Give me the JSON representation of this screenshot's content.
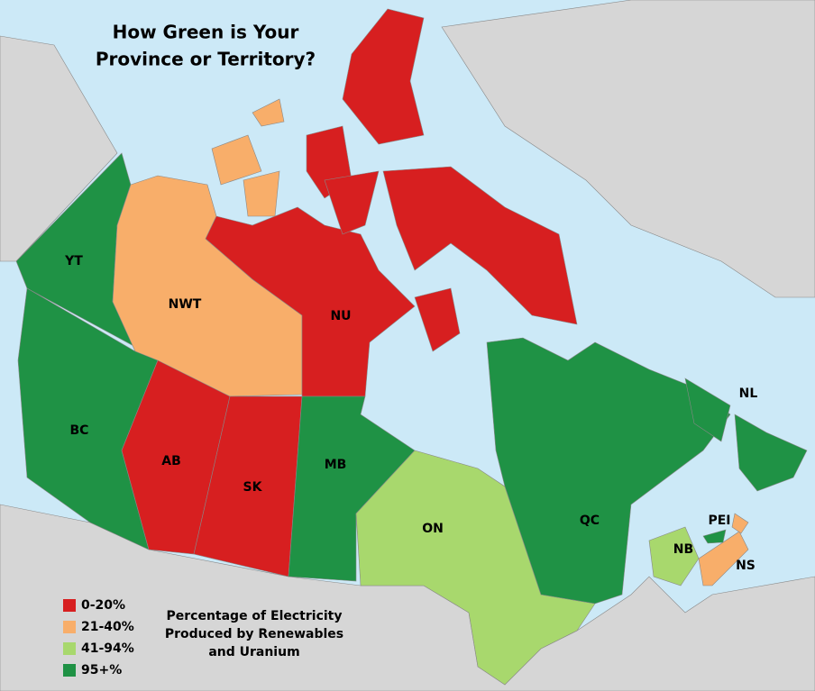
{
  "title": [
    "How Green is Your",
    "Province or Territory?"
  ],
  "legend": [
    {
      "label": "0-20%",
      "color": "#d71f20"
    },
    {
      "label": "21-40%",
      "color": "#f8ae6a"
    },
    {
      "label": "41-94%",
      "color": "#a8d86d"
    },
    {
      "label": "95+%",
      "color": "#1f9245"
    }
  ],
  "caption": [
    "Percentage of Electricity",
    "Produced by Renewables",
    "and Uranium"
  ],
  "regions": [
    {
      "label": "YT",
      "color": "#1f9245"
    },
    {
      "label": "NWT",
      "color": "#f8ae6a"
    },
    {
      "label": "NU",
      "color": "#d71f20"
    },
    {
      "label": "BC",
      "color": "#1f9245"
    },
    {
      "label": "AB",
      "color": "#d71f20"
    },
    {
      "label": "SK",
      "color": "#d71f20"
    },
    {
      "label": "MB",
      "color": "#1f9245"
    },
    {
      "label": "ON",
      "color": "#a8d86d"
    },
    {
      "label": "QC",
      "color": "#1f9245"
    },
    {
      "label": "NL",
      "color": "#1f9245"
    },
    {
      "label": "PEI",
      "color": "#1f9245"
    },
    {
      "label": "NB",
      "color": "#a8d86d"
    },
    {
      "label": "NS",
      "color": "#f8ae6a"
    }
  ]
}
